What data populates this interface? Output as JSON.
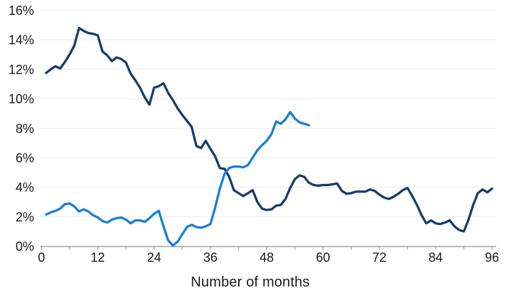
{
  "chart_data": {
    "type": "line",
    "title": "",
    "xlabel": "Number of months",
    "ylabel": "",
    "x_axis": {
      "min": 0,
      "max": 96,
      "label_tick_values": [
        0,
        12,
        24,
        36,
        48,
        60,
        72,
        84,
        96
      ],
      "tick_labels": [
        "0",
        "12",
        "24",
        "36",
        "48",
        "60",
        "72",
        "84",
        "96"
      ],
      "minor_tick_step": 6
    },
    "y_axis": {
      "min": 0,
      "max": 16,
      "tick_step": 2,
      "tick_labels": [
        "0%",
        "2%",
        "4%",
        "6%",
        "8%",
        "10%",
        "12%",
        "14%",
        "16%"
      ]
    },
    "grid": "horizontal",
    "legend": "none",
    "series": [
      {
        "name": "dark-navy-line",
        "color": "#143d6b",
        "x_start": 1,
        "values": [
          11.75,
          12.0,
          12.2,
          12.05,
          12.5,
          13.0,
          13.6,
          14.8,
          14.6,
          14.45,
          14.4,
          14.3,
          13.2,
          12.95,
          12.55,
          12.8,
          12.7,
          12.45,
          11.7,
          11.25,
          10.75,
          10.1,
          9.6,
          10.75,
          10.85,
          11.05,
          10.4,
          9.9,
          9.35,
          8.9,
          8.5,
          8.1,
          6.8,
          6.65,
          7.15,
          6.6,
          6.1,
          5.3,
          5.25,
          4.7,
          3.8,
          3.6,
          3.4,
          3.6,
          3.8,
          3.0,
          2.55,
          2.45,
          2.5,
          2.75,
          2.8,
          3.2,
          3.95,
          4.55,
          4.8,
          4.7,
          4.3,
          4.15,
          4.1,
          4.15,
          4.15,
          4.2,
          4.25,
          3.75,
          3.55,
          3.6,
          3.7,
          3.7,
          3.7,
          3.85,
          3.75,
          3.5,
          3.3,
          3.2,
          3.35,
          3.55,
          3.8,
          3.95,
          3.4,
          2.8,
          2.1,
          1.55,
          1.75,
          1.55,
          1.5,
          1.6,
          1.75,
          1.35,
          1.1,
          1.0,
          1.8,
          2.8,
          3.6,
          3.85,
          3.65,
          3.9
        ]
      },
      {
        "name": "light-blue-line",
        "color": "#1a7dd7",
        "x_start": 1,
        "values": [
          2.15,
          2.3,
          2.4,
          2.55,
          2.85,
          2.9,
          2.7,
          2.35,
          2.5,
          2.35,
          2.1,
          1.95,
          1.7,
          1.6,
          1.8,
          1.9,
          1.95,
          1.8,
          1.55,
          1.75,
          1.75,
          1.65,
          1.9,
          2.2,
          2.4,
          1.35,
          0.4,
          0.05,
          0.3,
          0.8,
          1.3,
          1.45,
          1.3,
          1.25,
          1.35,
          1.5,
          2.6,
          3.9,
          4.9,
          5.3,
          5.4,
          5.4,
          5.35,
          5.5,
          6.0,
          6.5,
          6.85,
          7.15,
          7.6,
          8.45,
          8.3,
          8.6,
          9.1,
          8.65,
          8.4,
          8.3,
          8.2
        ]
      }
    ],
    "colors": {
      "background": "#ffffff",
      "gridline": "#ebebeb",
      "axis": "#a0a0a0",
      "tick_text": "#1a1a1a"
    }
  }
}
